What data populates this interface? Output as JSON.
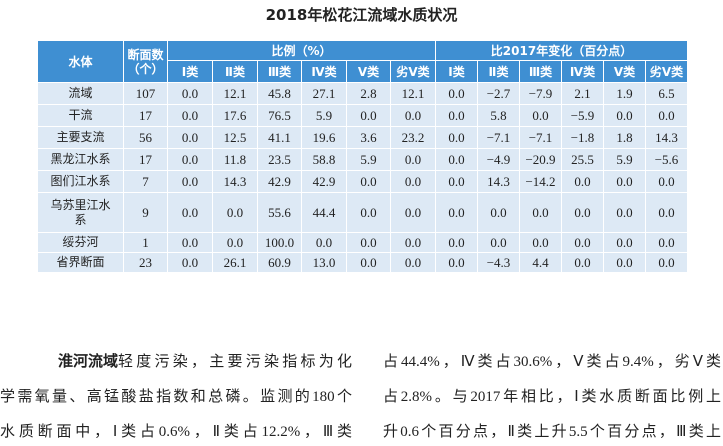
{
  "table": {
    "title": "2018年松花江流域水质状况",
    "header": {
      "water_body": "水体",
      "count": [
        "断面数",
        "（个）"
      ],
      "ratio": "比例（%）",
      "change": "比2017年变化（百分点）",
      "classes": [
        "Ⅰ类",
        "Ⅱ类",
        "Ⅲ类",
        "Ⅳ类",
        "Ⅴ类",
        "劣Ⅴ类",
        "Ⅰ类",
        "Ⅱ类",
        "Ⅲ类",
        "Ⅳ类",
        "Ⅴ类",
        "劣Ⅴ类"
      ]
    },
    "rows": [
      [
        "流域",
        "107",
        "0.0",
        "12.1",
        "45.8",
        "27.1",
        "2.8",
        "12.1",
        "0.0",
        "−2.7",
        "−7.9",
        "2.1",
        "1.9",
        "6.5"
      ],
      [
        "干流",
        "17",
        "0.0",
        "17.6",
        "76.5",
        "5.9",
        "0.0",
        "0.0",
        "0.0",
        "5.8",
        "0.0",
        "−5.9",
        "0.0",
        "0.0"
      ],
      [
        "主要支流",
        "56",
        "0.0",
        "12.5",
        "41.1",
        "19.6",
        "3.6",
        "23.2",
        "0.0",
        "−7.1",
        "−7.1",
        "−1.8",
        "1.8",
        "14.3"
      ],
      [
        "黑龙江水系",
        "17",
        "0.0",
        "11.8",
        "23.5",
        "58.8",
        "5.9",
        "0.0",
        "0.0",
        "−4.9",
        "−20.9",
        "25.5",
        "5.9",
        "−5.6"
      ],
      [
        "图们江水系",
        "7",
        "0.0",
        "14.3",
        "42.9",
        "42.9",
        "0.0",
        "0.0",
        "0.0",
        "14.3",
        "−14.2",
        "0.0",
        "0.0",
        "0.0"
      ],
      [
        "乌苏里江水系",
        "9",
        "0.0",
        "0.0",
        "55.6",
        "44.4",
        "0.0",
        "0.0",
        "0.0",
        "0.0",
        "0.0",
        "0.0",
        "0.0",
        "0.0"
      ],
      [
        "绥芬河",
        "1",
        "0.0",
        "0.0",
        "100.0",
        "0.0",
        "0.0",
        "0.0",
        "0.0",
        "0.0",
        "0.0",
        "0.0",
        "0.0",
        "0.0"
      ],
      [
        "省界断面",
        "23",
        "0.0",
        "26.1",
        "60.9",
        "13.0",
        "0.0",
        "0.0",
        "0.0",
        "−4.3",
        "4.4",
        "0.0",
        "0.0",
        "0.0"
      ]
    ]
  },
  "text": {
    "heading": "淮河流域",
    "left_lines": [
      "轻度污染，主要污染指标为化",
      "学需氧量、高锰酸盐指数和总磷。监测的180个",
      "水质断面中，Ⅰ类占0.6%，Ⅱ类占12.2%，Ⅲ类"
    ],
    "right_lines": [
      "占44.4%，Ⅳ类占30.6%，Ⅴ类占9.4%，劣Ⅴ类",
      "占2.8%。与2017年相比，Ⅰ类水质断面比例上",
      "升0.6个百分点，Ⅱ类上升5.5个百分点，Ⅲ类上"
    ]
  }
}
